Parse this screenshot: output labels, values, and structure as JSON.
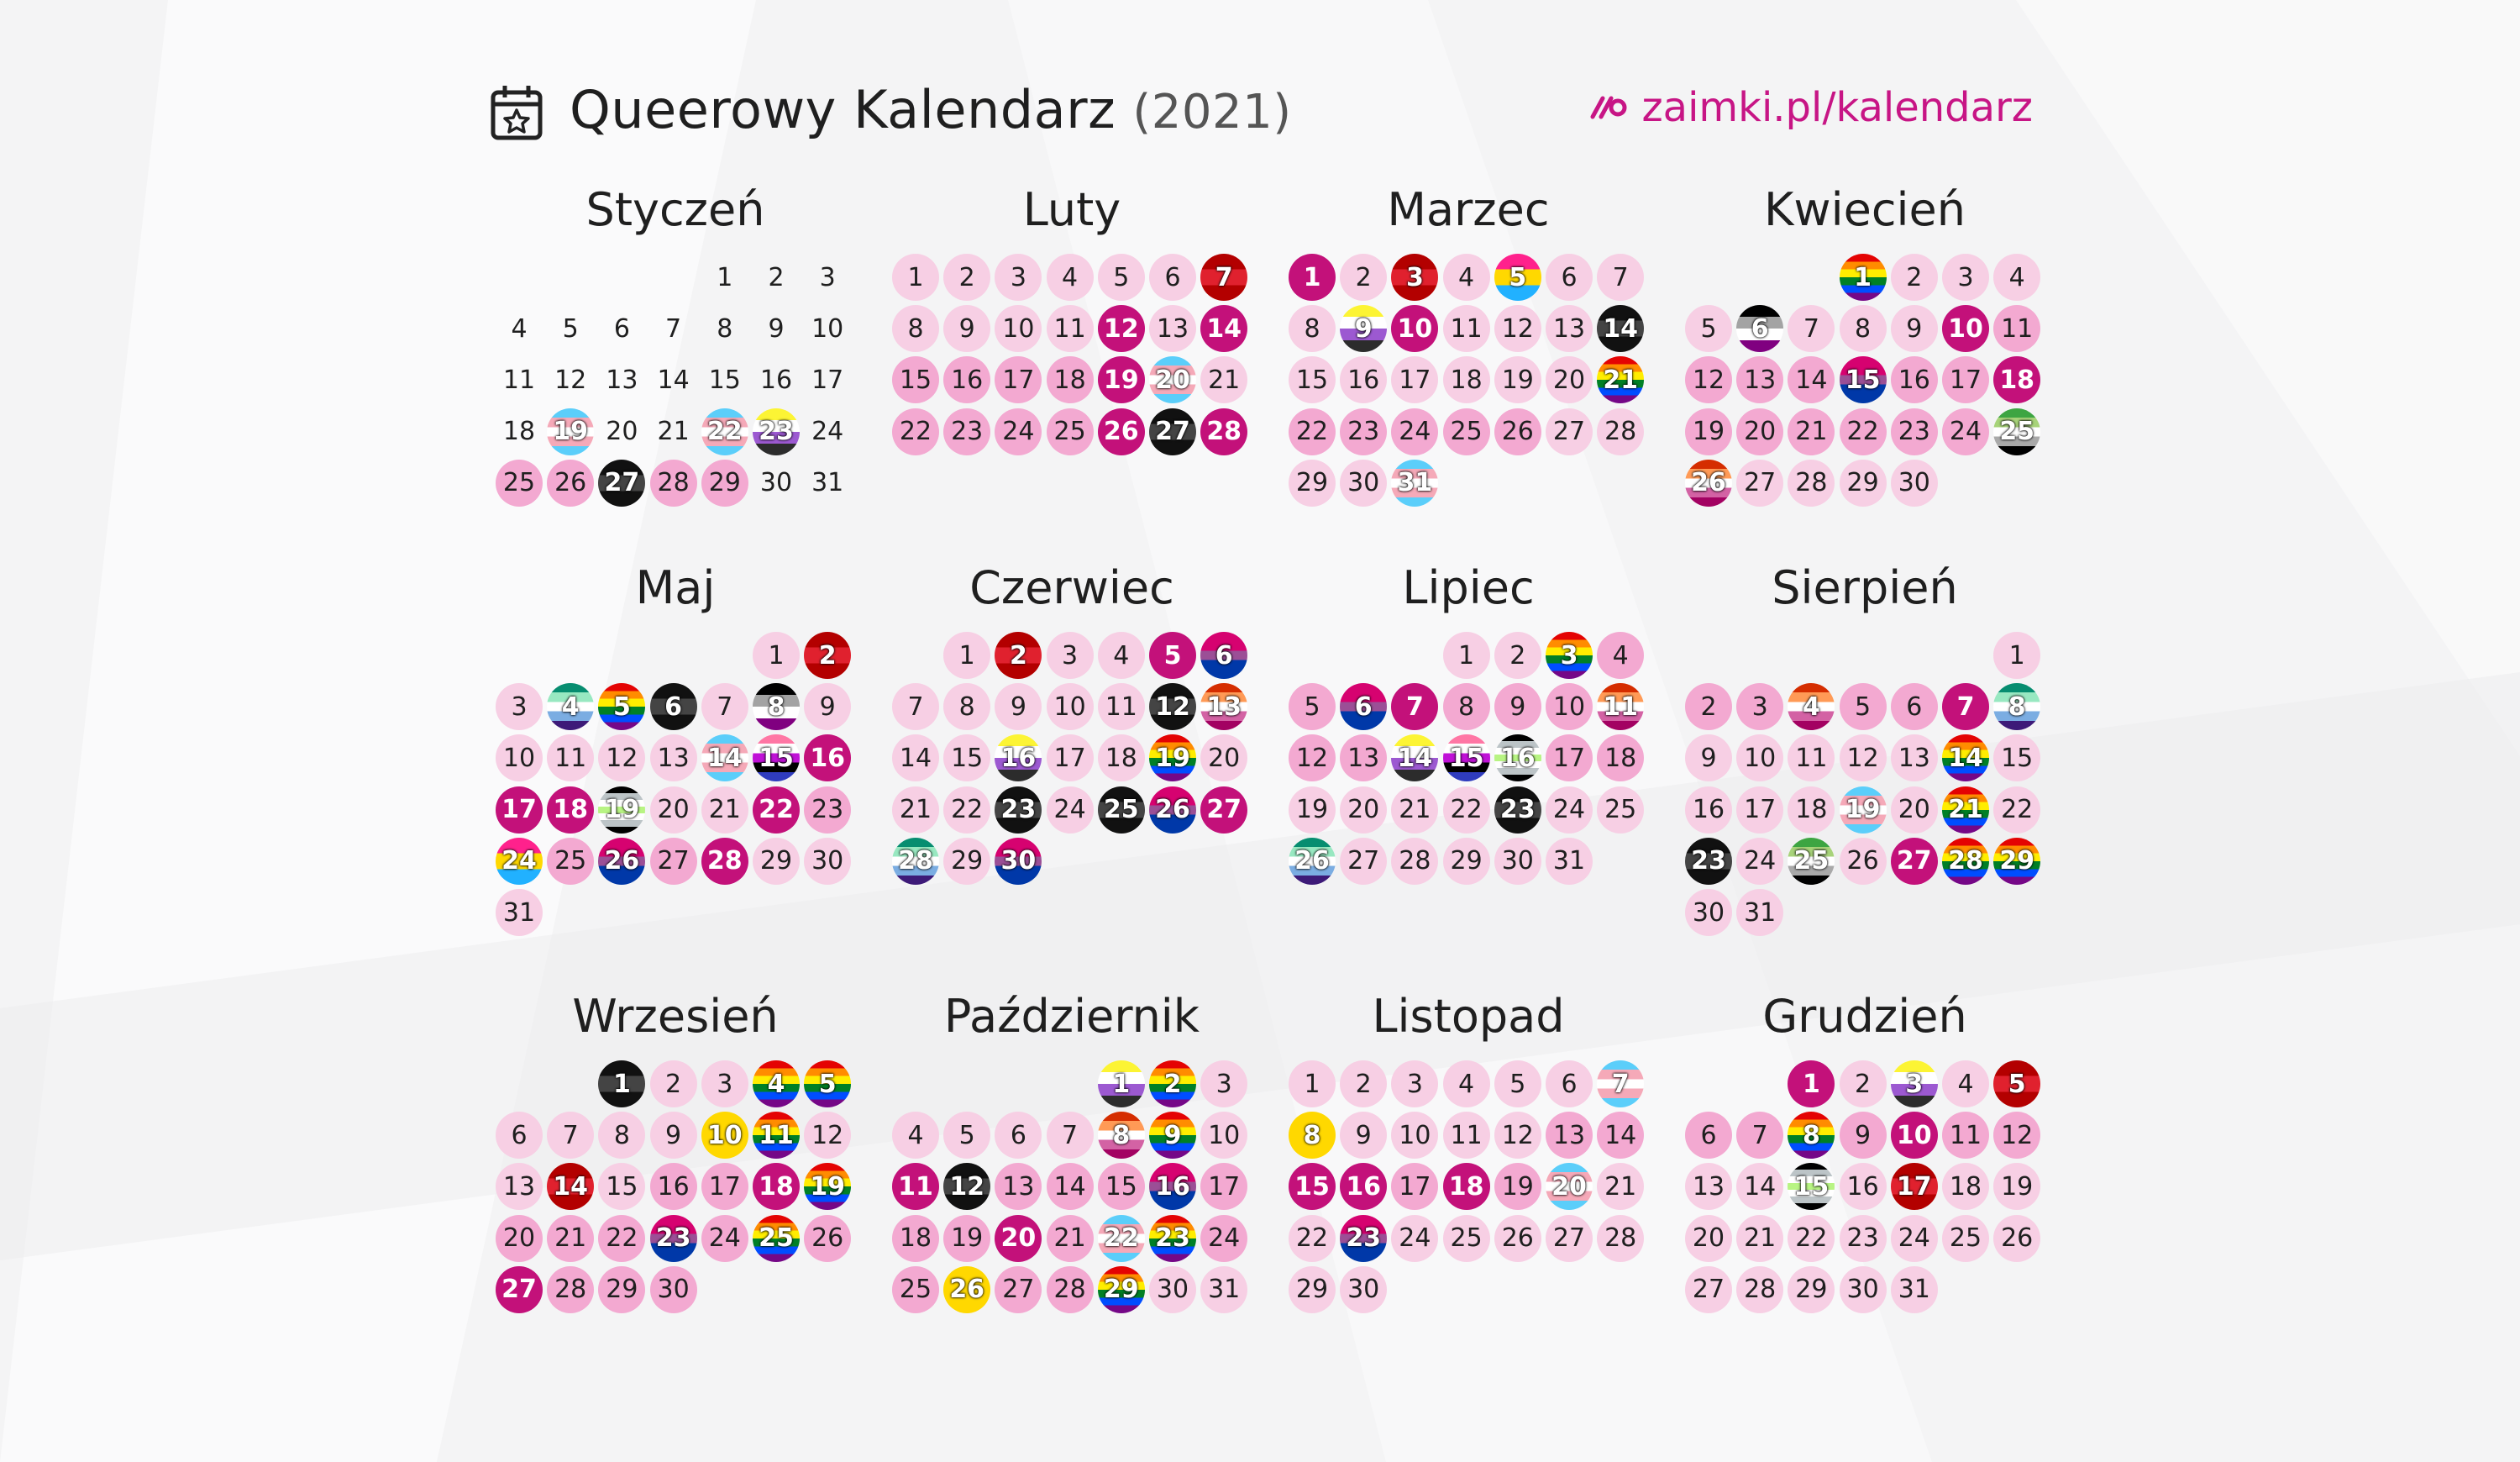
{
  "header": {
    "calendar_icon": "calendar-star-icon",
    "title": "Queerowy Kalendarz",
    "year": "(2021)",
    "site_icon": "zaimki-logo-icon",
    "site": "zaimki.pl/kalendarz"
  },
  "colors": {
    "accent": "#c71585",
    "light": "#f7cfe4",
    "mid": "#f3a9d1",
    "dark": "#c3117a"
  },
  "flag_palettes": {
    "rainbow": [
      "#e40303",
      "#ff8c00",
      "#ffed00",
      "#008026",
      "#004dff",
      "#750787"
    ],
    "trans": [
      "#5bcefa",
      "#f5a9b8",
      "#ffffff",
      "#f5a9b8",
      "#5bcefa"
    ],
    "bi": [
      "#d60270",
      "#d60270",
      "#9b4f96",
      "#0038a8",
      "#0038a8"
    ],
    "pan": [
      "#ff218c",
      "#ffd800",
      "#21b1ff"
    ],
    "ace": [
      "#000000",
      "#a3a3a3",
      "#ffffff",
      "#800080"
    ],
    "aro": [
      "#3da542",
      "#a7d379",
      "#ffffff",
      "#a9a9a9",
      "#000000"
    ],
    "nb": [
      "#fcf434",
      "#ffffff",
      "#9c59d1",
      "#2c2c2c"
    ],
    "lesbian": [
      "#d52d00",
      "#ff9a56",
      "#ffffff",
      "#d362a4",
      "#a30262"
    ],
    "gay": [
      "#078d70",
      "#98e8c1",
      "#ffffff",
      "#7bade2",
      "#3d1a78"
    ],
    "genderfluid": [
      "#ff76a4",
      "#ffffff",
      "#c011d7",
      "#000000",
      "#2f3cbe"
    ],
    "intersex": [
      "#ffd800",
      "#ffd800",
      "#ffd800"
    ],
    "agender": [
      "#000000",
      "#bcc4c7",
      "#ffffff",
      "#b8f483",
      "#ffffff",
      "#bcc4c7",
      "#000000"
    ],
    "red": [
      "#b30000",
      "#e0212e",
      "#b30000"
    ],
    "black": [
      "#111111",
      "#444444",
      "#111111"
    ],
    "ukraine_like": [
      "#c3117a",
      "#ffffff",
      "#c3117a"
    ]
  },
  "months": [
    {
      "name": "Styczeń",
      "offset": 4,
      "days": 31,
      "styles": {
        "19": "flag:trans",
        "22": "flag:trans",
        "23": "flag:nb",
        "25": "mid",
        "26": "mid",
        "27": "flag:black",
        "28": "mid",
        "29": "mid"
      }
    },
    {
      "name": "Luty",
      "offset": 0,
      "days": 28,
      "styles": {
        "1": "light",
        "2": "light",
        "3": "light",
        "4": "light",
        "5": "light",
        "6": "light",
        "7": "flag:red",
        "8": "light",
        "9": "light",
        "10": "light",
        "11": "light",
        "12": "dark",
        "13": "light",
        "14": "dark",
        "15": "mid",
        "16": "mid",
        "17": "mid",
        "18": "mid",
        "19": "dark",
        "20": "flag:trans",
        "21": "light",
        "22": "mid",
        "23": "mid",
        "24": "mid",
        "25": "mid",
        "26": "dark",
        "27": "flag:black",
        "28": "dark"
      }
    },
    {
      "name": "Marzec",
      "offset": 0,
      "days": 31,
      "styles": {
        "1": "dark",
        "2": "light",
        "3": "flag:red",
        "4": "light",
        "5": "flag:pan",
        "6": "light",
        "7": "light",
        "8": "light",
        "9": "flag:nb",
        "10": "dark",
        "11": "light",
        "12": "light",
        "13": "light",
        "14": "flag:black",
        "15": "light",
        "16": "light",
        "17": "light",
        "18": "light",
        "19": "light",
        "20": "light",
        "21": "flag:rainbow",
        "22": "mid",
        "23": "mid",
        "24": "mid",
        "25": "mid",
        "26": "mid",
        "27": "light",
        "28": "light",
        "29": "light",
        "30": "light",
        "31": "flag:trans"
      }
    },
    {
      "name": "Kwiecień",
      "offset": 3,
      "days": 30,
      "styles": {
        "1": "flag:rainbow",
        "2": "light",
        "3": "light",
        "4": "light",
        "5": "light",
        "6": "flag:ace",
        "7": "light",
        "8": "light",
        "9": "light",
        "10": "dark",
        "11": "mid",
        "12": "mid",
        "13": "mid",
        "14": "mid",
        "15": "flag:bi",
        "16": "mid",
        "17": "mid",
        "18": "dark",
        "19": "mid",
        "20": "mid",
        "21": "mid",
        "22": "mid",
        "23": "mid",
        "24": "mid",
        "25": "flag:aro",
        "26": "flag:lesbian",
        "27": "light",
        "28": "light",
        "29": "light",
        "30": "light"
      }
    },
    {
      "name": "Maj",
      "offset": 5,
      "days": 31,
      "styles": {
        "1": "light",
        "2": "flag:red",
        "3": "light",
        "4": "flag:gay",
        "5": "flag:rainbow",
        "6": "flag:black",
        "7": "light",
        "8": "flag:ace",
        "9": "light",
        "10": "light",
        "11": "light",
        "12": "light",
        "13": "light",
        "14": "flag:trans",
        "15": "flag:genderfluid",
        "16": "dark",
        "17": "dark",
        "18": "dark",
        "19": "flag:agender",
        "20": "light",
        "21": "light",
        "22": "dark",
        "23": "mid",
        "24": "flag:pan",
        "25": "mid",
        "26": "flag:bi",
        "27": "mid",
        "28": "dark",
        "29": "light",
        "30": "light",
        "31": "light"
      }
    },
    {
      "name": "Czerwiec",
      "offset": 1,
      "days": 30,
      "styles": {
        "1": "light",
        "2": "flag:red",
        "3": "light",
        "4": "light",
        "5": "dark",
        "6": "flag:bi",
        "7": "light",
        "8": "light",
        "9": "light",
        "10": "light",
        "11": "light",
        "12": "flag:black",
        "13": "flag:lesbian",
        "14": "light",
        "15": "light",
        "16": "flag:nb",
        "17": "light",
        "18": "light",
        "19": "flag:rainbow",
        "20": "light",
        "21": "light",
        "22": "light",
        "23": "flag:black",
        "24": "light",
        "25": "flag:black",
        "26": "flag:bi",
        "27": "dark",
        "28": "flag:gay",
        "29": "light",
        "30": "flag:bi"
      }
    },
    {
      "name": "Lipiec",
      "offset": 3,
      "days": 31,
      "styles": {
        "1": "light",
        "2": "light",
        "3": "flag:rainbow",
        "4": "mid",
        "5": "mid",
        "6": "flag:bi",
        "7": "dark",
        "8": "mid",
        "9": "mid",
        "10": "mid",
        "11": "flag:lesbian",
        "12": "mid",
        "13": "mid",
        "14": "flag:nb",
        "15": "flag:genderfluid",
        "16": "flag:agender",
        "17": "mid",
        "18": "mid",
        "19": "light",
        "20": "light",
        "21": "light",
        "22": "light",
        "23": "flag:black",
        "24": "light",
        "25": "light",
        "26": "flag:gay",
        "27": "light",
        "28": "light",
        "29": "light",
        "30": "light",
        "31": "light"
      }
    },
    {
      "name": "Sierpień",
      "offset": 6,
      "days": 31,
      "styles": {
        "1": "light",
        "2": "mid",
        "3": "mid",
        "4": "flag:lesbian",
        "5": "mid",
        "6": "mid",
        "7": "dark",
        "8": "flag:gay",
        "9": "light",
        "10": "light",
        "11": "light",
        "12": "light",
        "13": "light",
        "14": "flag:rainbow",
        "15": "light",
        "16": "light",
        "17": "light",
        "18": "light",
        "19": "flag:trans",
        "20": "light",
        "21": "flag:rainbow",
        "22": "light",
        "23": "flag:black",
        "24": "light",
        "25": "flag:aro",
        "26": "light",
        "27": "dark",
        "28": "flag:rainbow",
        "29": "flag:rainbow",
        "30": "light",
        "31": "light"
      }
    },
    {
      "name": "Wrzesień",
      "offset": 2,
      "days": 30,
      "styles": {
        "1": "flag:black",
        "2": "light",
        "3": "light",
        "4": "flag:rainbow",
        "5": "flag:rainbow",
        "6": "light",
        "7": "light",
        "8": "light",
        "9": "light",
        "10": "flag:intersex",
        "11": "flag:rainbow",
        "12": "light",
        "13": "light",
        "14": "flag:red",
        "15": "light",
        "16": "mid",
        "17": "mid",
        "18": "dark",
        "19": "flag:rainbow",
        "20": "mid",
        "21": "mid",
        "22": "mid",
        "23": "flag:bi",
        "24": "mid",
        "25": "flag:rainbow",
        "26": "mid",
        "27": "dark",
        "28": "mid",
        "29": "mid",
        "30": "mid"
      }
    },
    {
      "name": "Październik",
      "offset": 4,
      "days": 31,
      "styles": {
        "1": "flag:nb",
        "2": "flag:rainbow",
        "3": "light",
        "4": "light",
        "5": "light",
        "6": "light",
        "7": "light",
        "8": "flag:lesbian",
        "9": "flag:rainbow",
        "10": "light",
        "11": "dark",
        "12": "flag:black",
        "13": "mid",
        "14": "mid",
        "15": "mid",
        "16": "flag:bi",
        "17": "mid",
        "18": "mid",
        "19": "mid",
        "20": "dark",
        "21": "mid",
        "22": "flag:trans",
        "23": "flag:rainbow",
        "24": "mid",
        "25": "mid",
        "26": "flag:intersex",
        "27": "mid",
        "28": "mid",
        "29": "flag:rainbow",
        "30": "light",
        "31": "light"
      }
    },
    {
      "name": "Listopad",
      "offset": 0,
      "days": 30,
      "styles": {
        "1": "light",
        "2": "light",
        "3": "light",
        "4": "light",
        "5": "light",
        "6": "light",
        "7": "flag:trans",
        "8": "flag:intersex",
        "9": "light",
        "10": "light",
        "11": "light",
        "12": "light",
        "13": "mid",
        "14": "mid",
        "15": "dark",
        "16": "dark",
        "17": "mid",
        "18": "dark",
        "19": "mid",
        "20": "flag:trans",
        "21": "light",
        "22": "light",
        "23": "flag:bi",
        "24": "light",
        "25": "light",
        "26": "light",
        "27": "light",
        "28": "light",
        "29": "light",
        "30": "light"
      }
    },
    {
      "name": "Grudzień",
      "offset": 2,
      "days": 31,
      "styles": {
        "1": "dark",
        "2": "light",
        "3": "flag:nb",
        "4": "light",
        "5": "flag:red",
        "6": "mid",
        "7": "mid",
        "8": "flag:rainbow",
        "9": "mid",
        "10": "dark",
        "11": "mid",
        "12": "mid",
        "13": "light",
        "14": "light",
        "15": "flag:agender",
        "16": "light",
        "17": "flag:red",
        "18": "light",
        "19": "light",
        "20": "light",
        "21": "light",
        "22": "light",
        "23": "light",
        "24": "light",
        "25": "light",
        "26": "light",
        "27": "light",
        "28": "light",
        "29": "light",
        "30": "light",
        "31": "light"
      }
    }
  ]
}
